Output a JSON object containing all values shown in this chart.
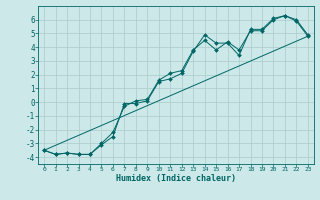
{
  "xlabel": "Humidex (Indice chaleur)",
  "bg_color": "#cce8e8",
  "line_color": "#006666",
  "grid_color": "#aacccc",
  "xlim": [
    -0.5,
    23.5
  ],
  "ylim": [
    -4.5,
    7.0
  ],
  "xticks": [
    0,
    1,
    2,
    3,
    4,
    5,
    6,
    7,
    8,
    9,
    10,
    11,
    12,
    13,
    14,
    15,
    16,
    17,
    18,
    19,
    20,
    21,
    22,
    23
  ],
  "yticks": [
    -4,
    -3,
    -2,
    -1,
    0,
    1,
    2,
    3,
    4,
    5,
    6
  ],
  "line1_x": [
    0,
    1,
    2,
    3,
    4,
    5,
    6,
    7,
    8,
    9,
    10,
    11,
    12,
    13,
    14,
    15,
    16,
    17,
    18,
    19,
    20,
    21,
    22,
    23
  ],
  "line1_y": [
    -3.5,
    -3.8,
    -3.7,
    -3.8,
    -3.8,
    -3.1,
    -2.5,
    -0.1,
    -0.1,
    0.1,
    1.5,
    1.7,
    2.1,
    3.7,
    4.9,
    4.3,
    4.3,
    3.4,
    5.3,
    5.3,
    6.1,
    6.3,
    5.9,
    4.8
  ],
  "line2_x": [
    0,
    1,
    2,
    3,
    4,
    5,
    6,
    7,
    8,
    9,
    10,
    11,
    12,
    13,
    14,
    15,
    16,
    17,
    18,
    19,
    20,
    21,
    22,
    23
  ],
  "line2_y": [
    -3.5,
    -3.8,
    -3.7,
    -3.8,
    -3.8,
    -3.0,
    -2.2,
    -0.3,
    0.1,
    0.2,
    1.6,
    2.1,
    2.3,
    3.8,
    4.5,
    3.8,
    4.4,
    3.8,
    5.2,
    5.2,
    6.0,
    6.3,
    6.0,
    4.9
  ],
  "line3_x": [
    0,
    23
  ],
  "line3_y": [
    -3.5,
    4.8
  ],
  "xlabel_fontsize": 6.0,
  "ytick_fontsize": 5.5,
  "xtick_fontsize": 4.5,
  "marker_size": 2.0,
  "line_width": 0.7
}
